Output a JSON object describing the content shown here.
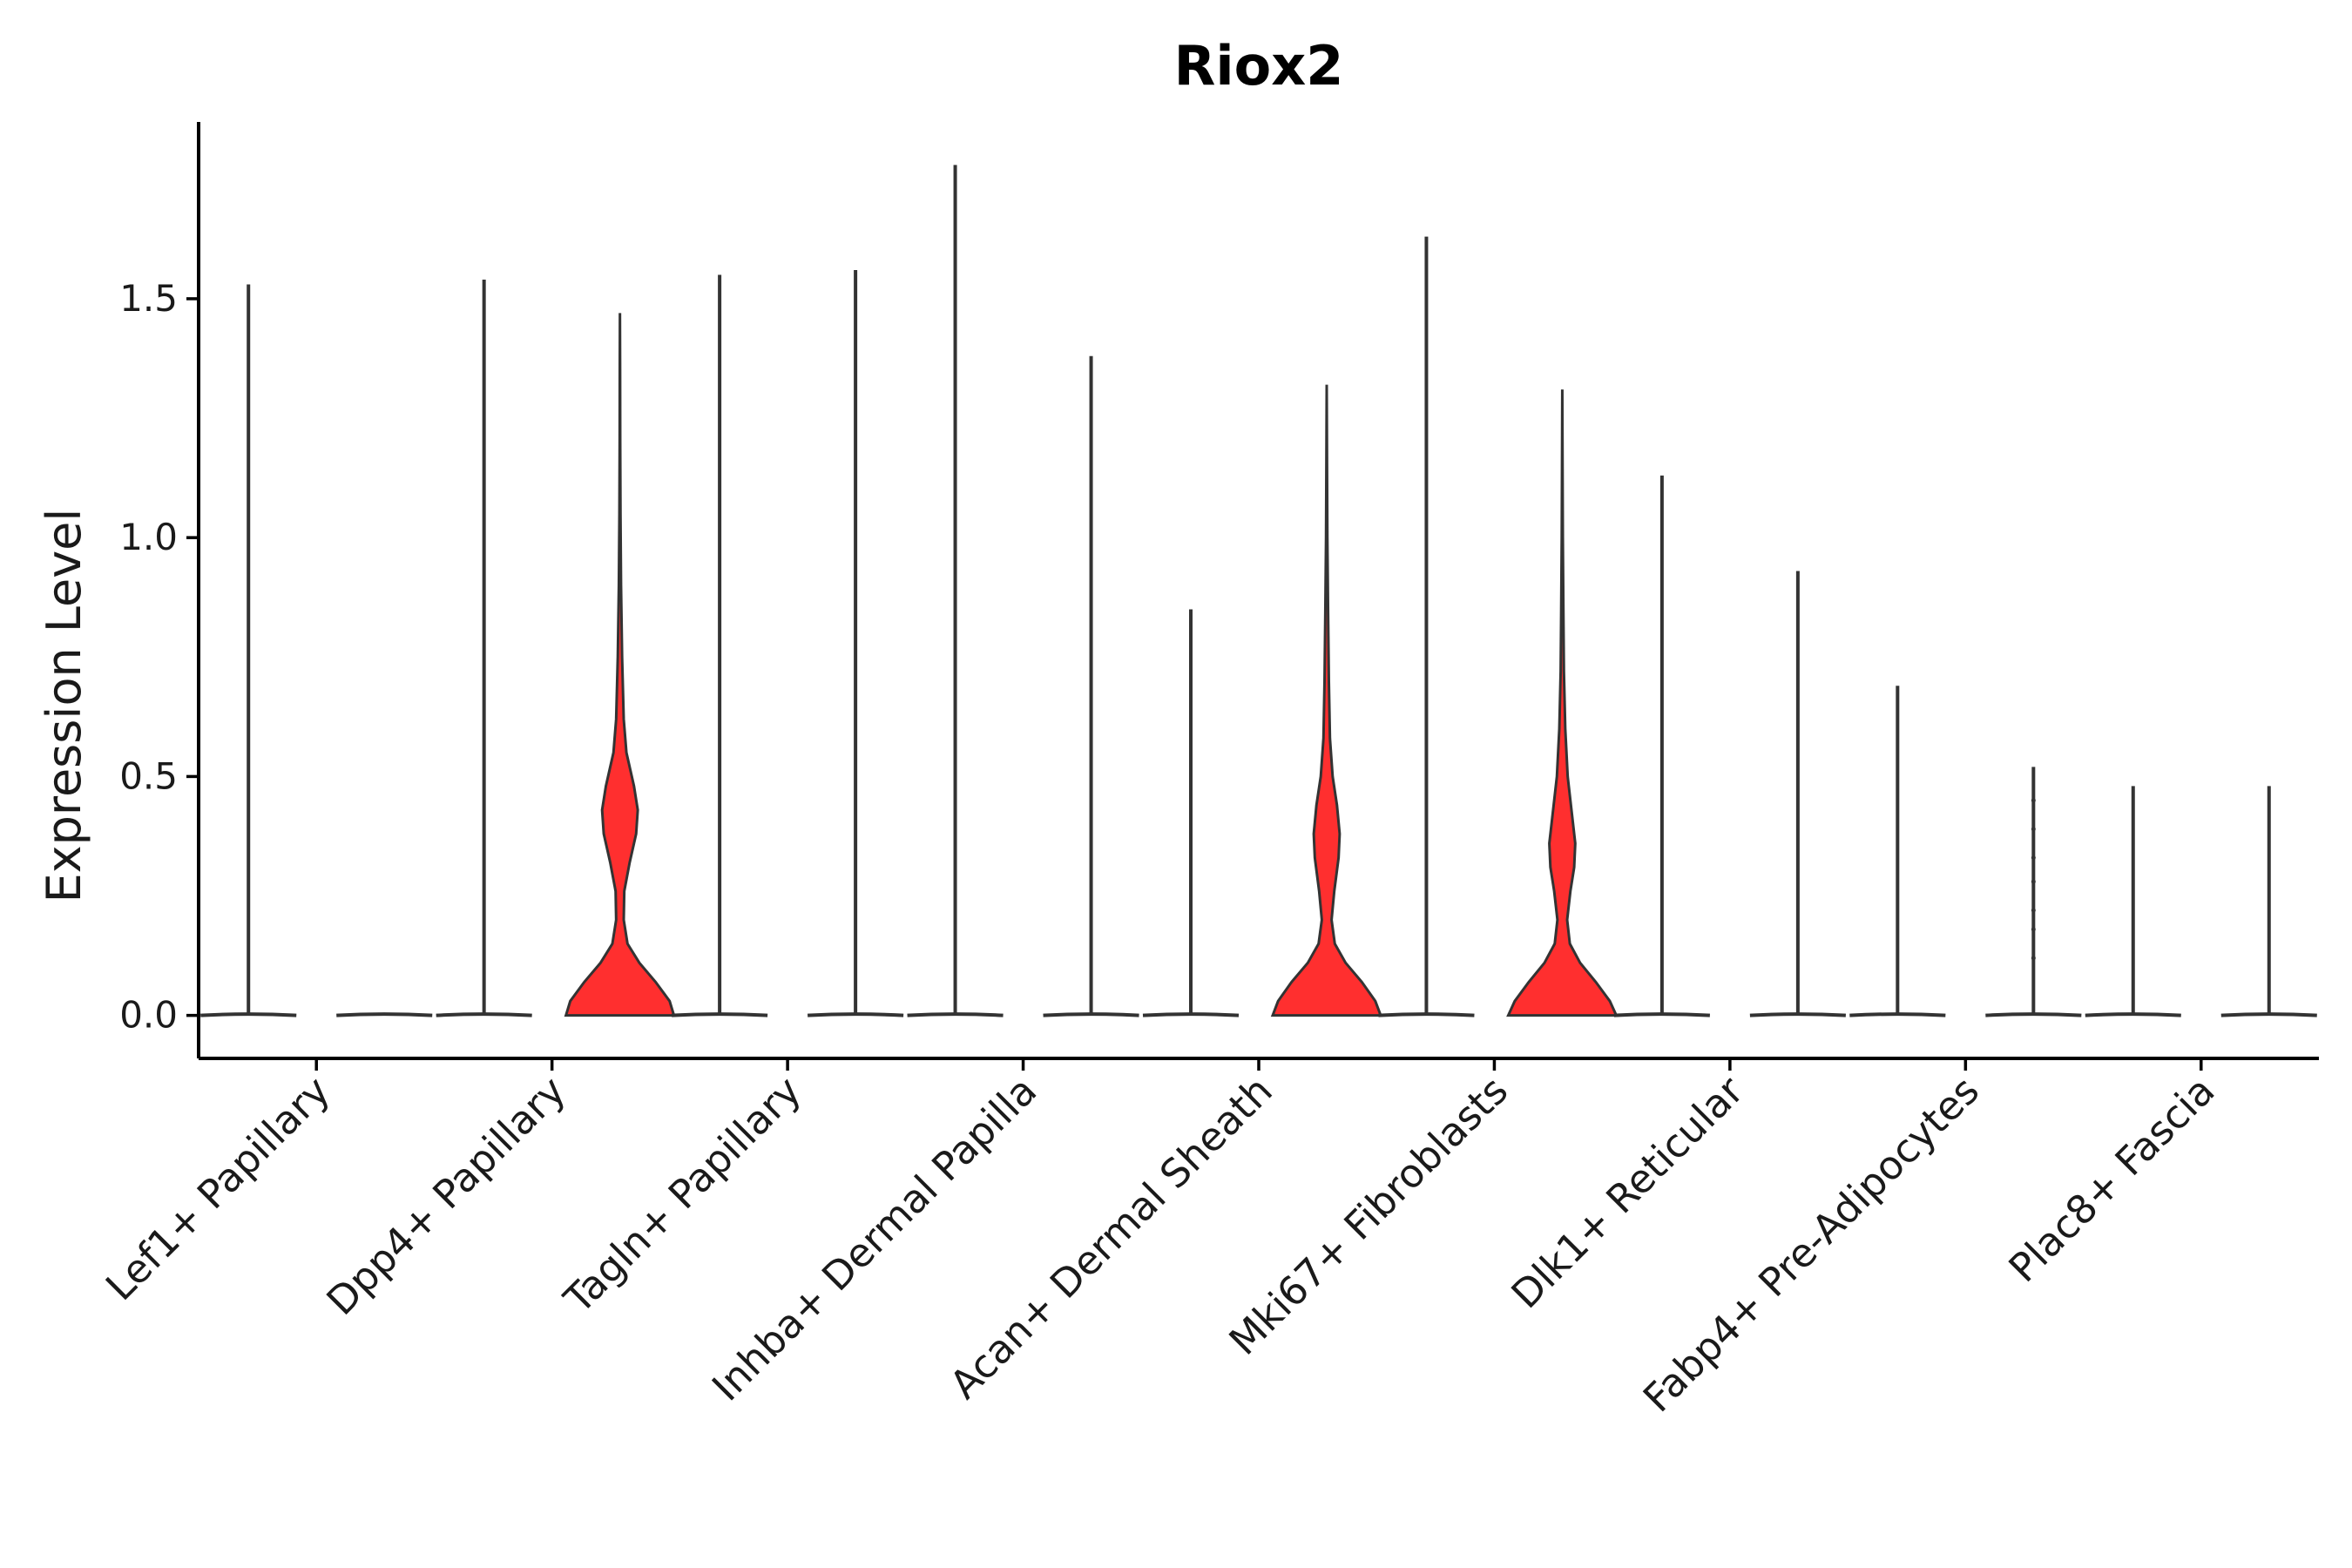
{
  "chart_data": {
    "type": "violin",
    "title": "Riox2",
    "xlabel": "",
    "ylabel": "Expression Level",
    "ylim": [
      -0.09,
      1.87
    ],
    "yticks": [
      "0.0",
      "0.5",
      "1.0",
      "1.5"
    ],
    "ytick_values": [
      0.0,
      0.5,
      1.0,
      1.5
    ],
    "fill_color_low": "#d9d9d9",
    "fill_color_high": "#ff2f2f",
    "groups": [
      {
        "name": "Lef1+ Papillary",
        "split": [
          {
            "max": 1.53,
            "color": "#ffffff",
            "profile": "flat"
          },
          {
            "max": 0.0,
            "color": "#ffffff",
            "profile": "flat"
          }
        ]
      },
      {
        "name": "Dpp4+ Papillary",
        "split": [
          {
            "max": 1.54,
            "color": "#ffffff",
            "profile": "flat"
          },
          {
            "max": 1.47,
            "color": "#ff2f2f",
            "profile": "bimodal_a"
          }
        ]
      },
      {
        "name": "Tagln+ Papillary",
        "split": [
          {
            "max": 1.55,
            "color": "#ffffff",
            "profile": "flat"
          },
          {
            "max": 1.56,
            "color": "#ffffff",
            "profile": "flat"
          }
        ]
      },
      {
        "name": "Inhba+ Dermal Papilla",
        "split": [
          {
            "max": 1.78,
            "color": "#ffffff",
            "profile": "flat"
          },
          {
            "max": 1.38,
            "color": "#ffffff",
            "profile": "flat"
          }
        ]
      },
      {
        "name": "Acan+ Dermal Sheath",
        "split": [
          {
            "max": 0.85,
            "color": "#ffffff",
            "profile": "flat"
          },
          {
            "max": 1.32,
            "color": "#ff2f2f",
            "profile": "bimodal_b"
          }
        ]
      },
      {
        "name": "Mki67+ Fibroblasts",
        "split": [
          {
            "max": 1.63,
            "color": "#ffffff",
            "profile": "flat"
          },
          {
            "max": 1.31,
            "color": "#ff2f2f",
            "profile": "bimodal_c"
          }
        ]
      },
      {
        "name": "Dlk1+ Reticular",
        "split": [
          {
            "max": 1.13,
            "color": "#ffffff",
            "profile": "flat"
          },
          {
            "max": 0.93,
            "color": "#ffffff",
            "profile": "flat"
          }
        ]
      },
      {
        "name": "Fabp4+ Pre-Adipocytes",
        "split": [
          {
            "max": 0.69,
            "color": "#ffffff",
            "profile": "flat"
          },
          {
            "max": 0.52,
            "color": "#ffffff",
            "profile": "flat"
          }
        ]
      },
      {
        "name": "Plac8+ Fascia",
        "split": [
          {
            "max": 0.48,
            "color": "#ffffff",
            "profile": "flat"
          },
          {
            "max": 0.48,
            "color": "#ffffff",
            "profile": "flat"
          }
        ]
      }
    ]
  }
}
